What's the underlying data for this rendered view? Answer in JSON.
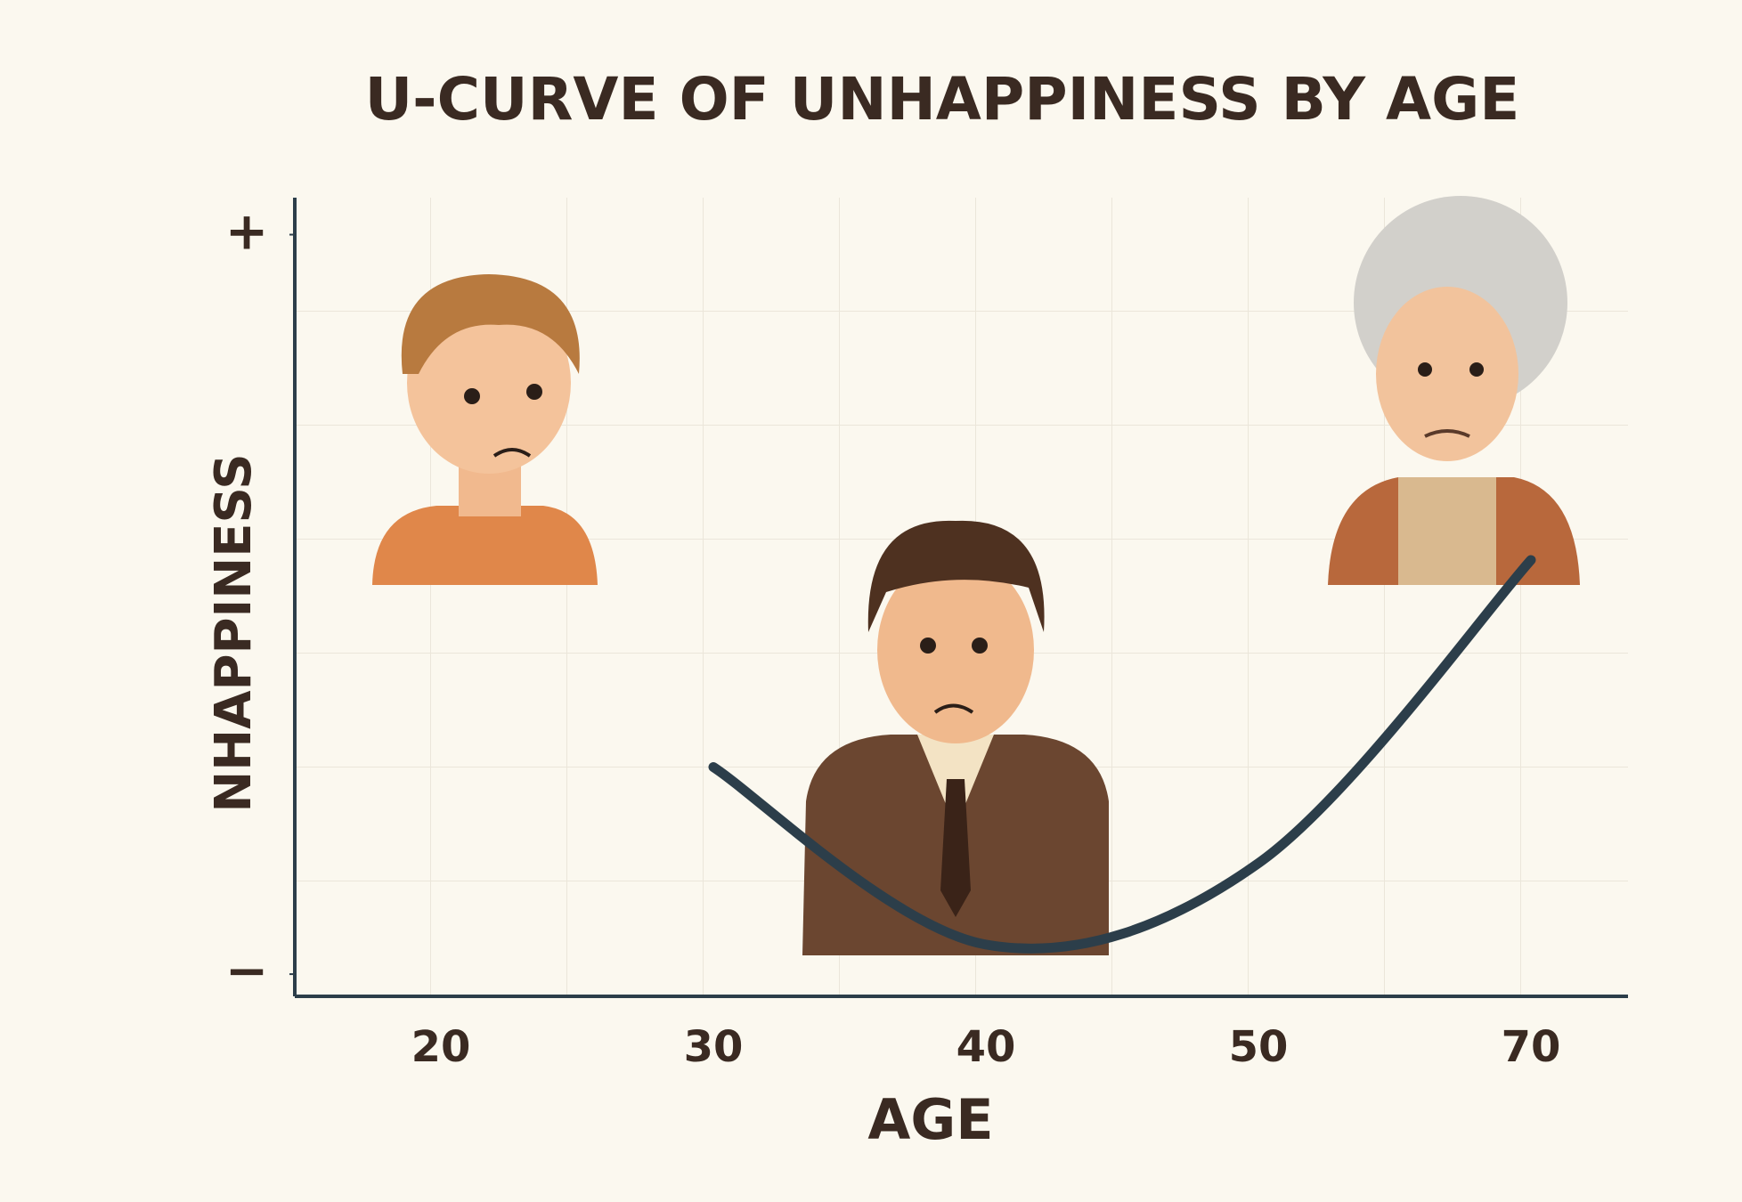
{
  "chart_data": {
    "type": "line",
    "title": "U-CURVE OF UNHAPPINESS BY AGE",
    "x_label": "AGE",
    "y_label": "NHAPPINESS",
    "categories": [
      "20",
      "30",
      "40",
      "50",
      "70"
    ],
    "values": [
      null,
      28,
      4,
      15,
      56
    ],
    "color": "#2c3e4a",
    "ylim": [
      -3,
      105
    ],
    "yticks": [
      {
        "value": 0,
        "label": "−"
      },
      {
        "value": 100,
        "label": "+"
      }
    ]
  }
}
